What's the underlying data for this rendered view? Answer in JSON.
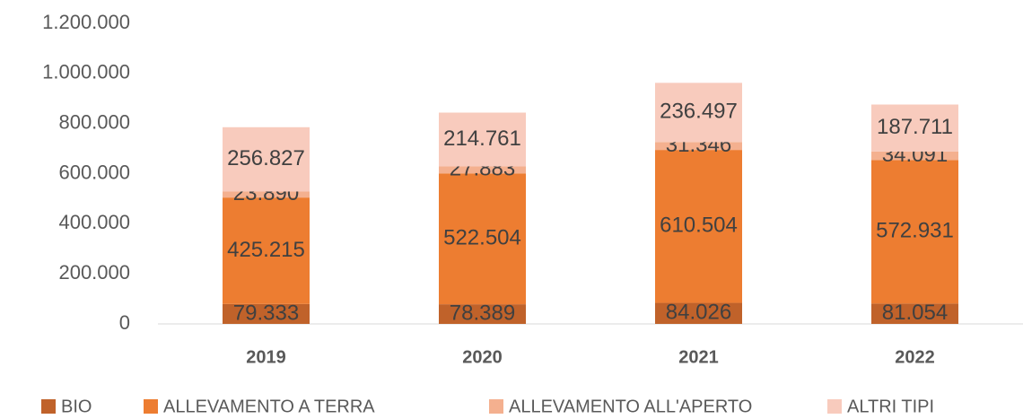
{
  "chart_data": {
    "type": "stacked_bar",
    "categories": [
      "2019",
      "2020",
      "2021",
      "2022"
    ],
    "series": [
      {
        "name": "BIO",
        "color": "#c0622a",
        "values": [
          79333,
          78389,
          84026,
          81054
        ],
        "value_labels": [
          "79.333",
          "78.389",
          "84.026",
          "81.054"
        ]
      },
      {
        "name": "ALLEVAMENTO A TERRA",
        "color": "#ed7d31",
        "values": [
          425215,
          522504,
          610504,
          572931
        ],
        "value_labels": [
          "425.215",
          "522.504",
          "610.504",
          "572.931"
        ]
      },
      {
        "name": "ALLEVAMENTO ALL'APERTO",
        "color": "#f4b08f",
        "values": [
          23890,
          27883,
          31346,
          34091
        ],
        "value_labels": [
          "23.890",
          "27.883",
          "31.346",
          "34.091"
        ]
      },
      {
        "name": "ALTRI TIPI",
        "color": "#f8cbbd",
        "values": [
          256827,
          214761,
          236497,
          187711
        ],
        "value_labels": [
          "256.827",
          "214.761",
          "236.497",
          "187.711"
        ]
      }
    ],
    "ylim": [
      0,
      1200000
    ],
    "yticks": [
      0,
      {
        "value": 200000,
        "label": "200.000"
      },
      {
        "value": 400000,
        "label": "400.000"
      },
      {
        "value": 600000,
        "label": "600.000"
      },
      {
        "value": 800000,
        "label": "800.000"
      },
      {
        "value": 1000000,
        "label": "1.000.000"
      },
      {
        "value": 1200000,
        "label": "1.200.000"
      }
    ],
    "legend": "bottom"
  }
}
